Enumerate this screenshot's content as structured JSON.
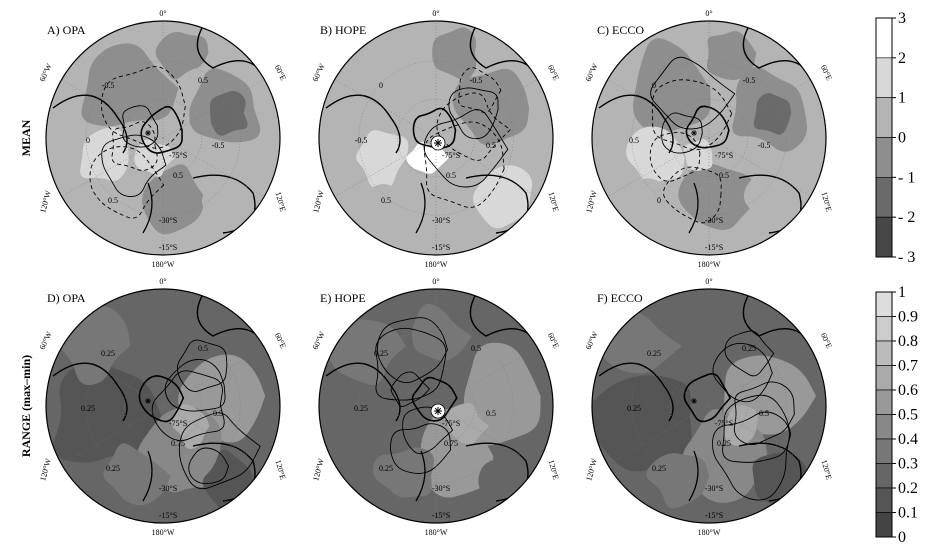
{
  "chart_data": {
    "type": "heatmap",
    "row_labels": [
      "MEAN",
      "RANGE (max–min)"
    ],
    "panels": [
      {
        "label": "A) OPA",
        "row": 0,
        "col": 0,
        "field": "mean",
        "contours": [
          "-0.5",
          "0.5",
          "0",
          "-0.5",
          "0.5",
          "0.5"
        ],
        "lat_labels": [
          "-75°S",
          "-30°S",
          "-15°S"
        ],
        "star": false
      },
      {
        "label": "B) HOPE",
        "row": 0,
        "col": 1,
        "field": "mean",
        "contours": [
          "0",
          "-0.5",
          "-0.5",
          "0.5",
          "0.5",
          "0.5"
        ],
        "lat_labels": [
          "-75°S",
          "-30°S",
          "-15°S"
        ],
        "star": true
      },
      {
        "label": "C) ECCO",
        "row": 0,
        "col": 2,
        "field": "mean",
        "contours": [
          "0",
          "-0.5",
          "0.5",
          "-0.5",
          "0",
          "0.5"
        ],
        "lat_labels": [
          "-75°S",
          "-30°S",
          "-15°S"
        ],
        "star": false
      },
      {
        "label": "D) OPA",
        "row": 1,
        "col": 0,
        "field": "range",
        "contours": [
          "0.25",
          "0.5",
          "0.25",
          "0.5",
          "0.25",
          "0.75"
        ],
        "lat_labels": [
          "-75°S",
          "-30°S",
          "-15°S"
        ],
        "star": false
      },
      {
        "label": "E) HOPE",
        "row": 1,
        "col": 1,
        "field": "range",
        "contours": [
          "0.25",
          "0.5",
          "0.25",
          "0.5",
          "0.25",
          "0.75"
        ],
        "lat_labels": [
          "-75°S",
          "-30°S",
          "-15°S"
        ],
        "star": true
      },
      {
        "label": "F) ECCO",
        "row": 1,
        "col": 2,
        "field": "range",
        "contours": [
          "0.25",
          "0.25",
          "0.25",
          "0.5",
          "0.25",
          "0.25"
        ],
        "lat_labels": [
          "-75°S",
          "-30°S",
          "-15°S"
        ],
        "star": false
      }
    ],
    "longitude_labels": [
      "0°",
      "60°W",
      "60°E",
      "120°W",
      "120°E",
      "180°W"
    ],
    "colorbars": [
      {
        "field": "mean",
        "min": -3,
        "max": 3,
        "levels": [
          -3,
          -2,
          -1,
          0,
          1,
          2,
          3
        ],
        "tick_labels": [
          "3",
          "2",
          "1",
          "0",
          "- 1",
          "- 2",
          "- 3"
        ],
        "colors": [
          "#474747",
          "#6a6a6a",
          "#8e8e8e",
          "#b4b4b4",
          "#d8d8d8",
          "#ffffff"
        ]
      },
      {
        "field": "range",
        "min": 0,
        "max": 1,
        "levels": [
          0,
          0.1,
          0.2,
          0.3,
          0.4,
          0.5,
          0.6,
          0.7,
          0.8,
          0.9,
          1
        ],
        "tick_labels": [
          "1",
          "0.9",
          "0.8",
          "0.7",
          "0.6",
          "0.5",
          "0.4",
          "0.3",
          "0.2",
          "0.1",
          "0"
        ],
        "colors": [
          "#444444",
          "#555555",
          "#666666",
          "#777777",
          "#888888",
          "#999999",
          "#aaaaaa",
          "#bbbbbb",
          "#cccccc",
          "#dddddd"
        ]
      }
    ],
    "grid": true,
    "projection": "polar stereographic, south pole centered"
  }
}
